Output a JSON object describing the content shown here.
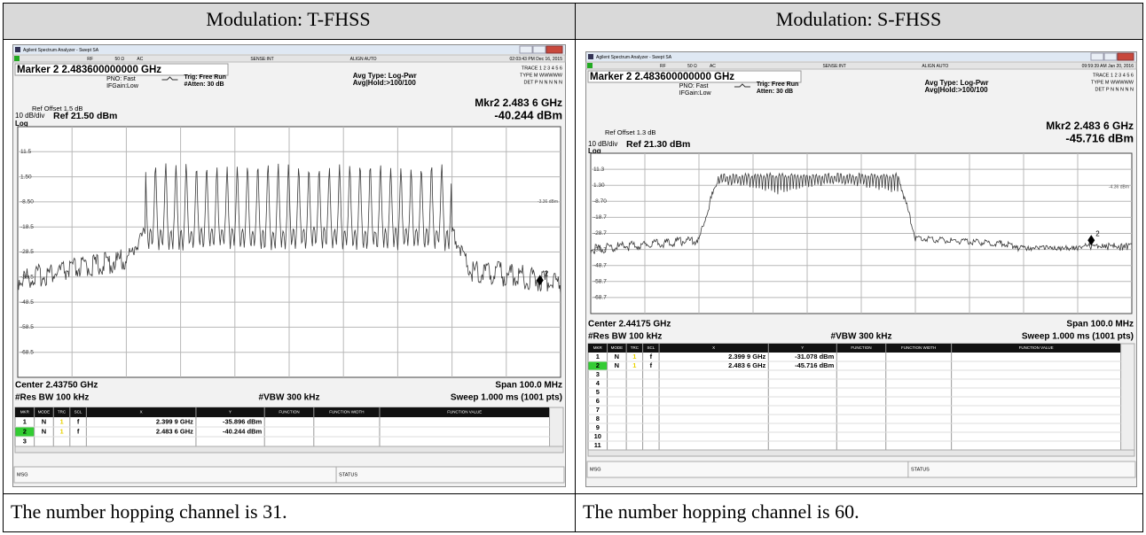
{
  "table": {
    "header": [
      "Modulation: T-FHSS",
      "Modulation: S-FHSS"
    ],
    "screens": [
      {
        "window_title": "Agilent Spectrum Analyzer - Swept SA",
        "status": [
          "RF",
          "50 Ω",
          "AC",
          "SENSE:INT",
          "ALIGN AUTO",
          "02:03:43 PM Dec 16, 2015"
        ],
        "marker_box": "Marker 2 2.483600000000 GHz",
        "settings": [
          "PNO: Fast",
          "IFGain:Low",
          "Trig: Free Run",
          "#Atten: 30 dB",
          "Avg Type: Log-Pwr",
          "Avg|Hold:>100/100"
        ],
        "trace_info": [
          "TRACE 1 2 3 4 5 6",
          "TYPE M WWWWW",
          "DET P N N N N N"
        ],
        "ref_offset": "Ref Offset 1.5 dB",
        "scale": "10 dB/div",
        "ref": "Ref 21.50 dBm",
        "log": "Log",
        "mkr_label": "Mkr2 2.483 6 GHz",
        "mkr_value": "-40.244 dBm",
        "y_labels": [
          "11.5",
          "1.50",
          "-8.50",
          "-18.5",
          "-28.5",
          "-38.5",
          "-48.5",
          "-58.5",
          "-68.5"
        ],
        "line_label": "-3.36 dBm",
        "marker_number": "2",
        "center": "Center 2.43750 GHz",
        "res_bw": "#Res BW 100 kHz",
        "vbw": "#VBW 300 kHz",
        "span": "Span 100.0 MHz",
        "sweep": "Sweep 1.000 ms (1001 pts)",
        "table_header": [
          "MKR",
          "MODE",
          "TRC",
          "SCL",
          "X",
          "Y",
          "FUNCTION",
          "FUNCTION WIDTH",
          "FUNCTION VALUE"
        ],
        "table_rows": [
          [
            "1",
            "N",
            "1",
            "f",
            "2.399 9 GHz",
            "-35.896 dBm"
          ],
          [
            "2",
            "N",
            "1",
            "f",
            "2.483 6 GHz",
            "-40.244 dBm"
          ],
          [
            "3"
          ]
        ],
        "msg": "MSG",
        "status_label": "STATUS"
      },
      {
        "window_title": "Agilent Spectrum Analyzer - Swept SA",
        "status": [
          "RF",
          "50 Ω",
          "AC",
          "SENSE:INT",
          "ALIGN AUTO",
          "09:59:39 AM Jan 20, 2016"
        ],
        "marker_box": "Marker 2 2.483600000000 GHz",
        "settings": [
          "PNO: Fast",
          "IFGain:Low",
          "Trig: Free Run",
          "Atten: 30 dB",
          "Avg Type: Log-Pwr",
          "Avg|Hold:>100/100"
        ],
        "trace_info": [
          "TRACE 1 2 3 4 5 6",
          "TYPE M WWWWW",
          "DET P N N N N N"
        ],
        "ref_offset": "Ref Offset 1.3 dB",
        "scale": "10 dB/div",
        "ref": "Ref 21.30 dBm",
        "log": "Log",
        "mkr_label": "Mkr2 2.483 6 GHz",
        "mkr_value": "-45.716 dBm",
        "y_labels": [
          "11.3",
          "1.30",
          "-8.70",
          "-18.7",
          "-28.7",
          "-38.7",
          "-48.7",
          "-58.7",
          "-68.7"
        ],
        "line_label": "-4.36 dBm",
        "marker_number": "2",
        "center": "Center 2.44175 GHz",
        "res_bw": "#Res BW 100 kHz",
        "vbw": "#VBW 300 kHz",
        "span": "Span 100.0 MHz",
        "sweep": "Sweep 1.000 ms (1001 pts)",
        "table_header": [
          "MKR",
          "MODE",
          "TRC",
          "SCL",
          "X",
          "Y",
          "FUNCTION",
          "FUNCTION WIDTH",
          "FUNCTION VALUE"
        ],
        "table_rows": [
          [
            "1",
            "N",
            "1",
            "f",
            "2.399 9 GHz",
            "-31.078 dBm"
          ],
          [
            "2",
            "N",
            "1",
            "f",
            "2.483 6 GHz",
            "-45.716 dBm"
          ],
          [
            "3"
          ],
          [
            "4"
          ],
          [
            "5"
          ],
          [
            "6"
          ],
          [
            "7"
          ],
          [
            "8"
          ],
          [
            "9"
          ],
          [
            "10"
          ],
          [
            "11"
          ]
        ],
        "msg": "MSG",
        "status_label": "STATUS"
      }
    ],
    "footer": [
      "The number hopping channel is 31.",
      "The number hopping channel is 60."
    ]
  }
}
